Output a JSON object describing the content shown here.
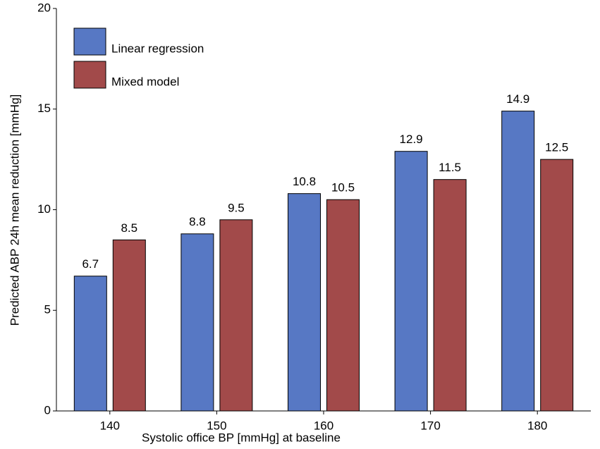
{
  "chart_data": {
    "type": "bar",
    "xlabel": "Systolic office BP [mmHg] at baseline",
    "ylabel": "Predicted ABP 24h mean reduction [mmHg]",
    "categories": [
      "140",
      "150",
      "160",
      "170",
      "180"
    ],
    "series": [
      {
        "name": "Linear regression",
        "color": "#5778c4",
        "values": [
          6.7,
          8.8,
          10.8,
          12.9,
          14.9
        ]
      },
      {
        "name": "Mixed model",
        "color": "#a24a4a",
        "values": [
          8.5,
          9.5,
          10.5,
          11.5,
          12.5
        ]
      }
    ],
    "ylim": [
      0,
      20
    ],
    "yticks": [
      0,
      5,
      10,
      15,
      20
    ],
    "legend": "upper left",
    "data_labels": true
  }
}
